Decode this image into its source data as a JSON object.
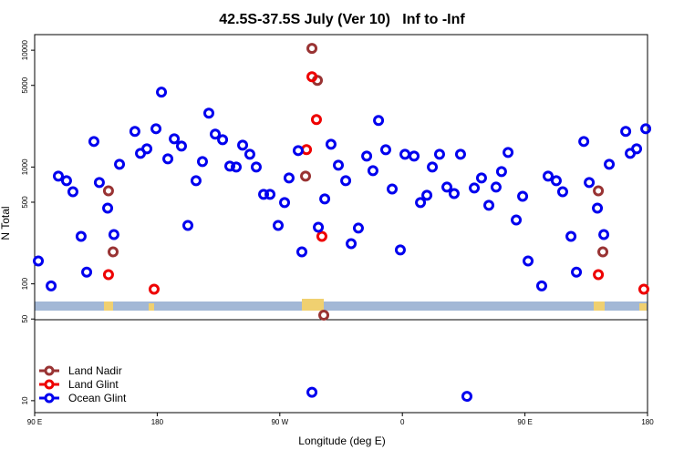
{
  "chart_data": {
    "type": "scatter",
    "title": "42.5S-37.5S July (Ver 10)   Inf to -Inf",
    "x_label": "Longitude (deg E)",
    "y_label": "N Total",
    "xlim": [
      90,
      540
    ],
    "xticks": [
      {
        "value": 90,
        "label": "90 E"
      },
      180,
      {
        "value": 270,
        "label": "90 W"
      },
      {
        "value": 360,
        "label": "0"
      },
      {
        "value": 450,
        "label": "90 E"
      },
      {
        "value": 540,
        "label": "180"
      }
    ],
    "ylim": [
      7.9,
      13600
    ],
    "y_log": true,
    "yticks": [
      10,
      50,
      100,
      500,
      1000,
      5000,
      10000
    ],
    "legend": "bottom-left",
    "series": [
      {
        "name": "Land Nadir",
        "color": "#993333",
        "x": [
          293.6,
          297.6,
          288.9,
          302.3,
          144.2,
          147.6,
          503.9,
          507.2
        ],
        "values": [
          10370,
          5520,
          836,
          54,
          626,
          188,
          626,
          188
        ]
      },
      {
        "name": "Land Glint",
        "color": "#ee0000",
        "x": [
          293.6,
          296.9,
          289.6,
          300.9,
          144.2,
          177.7,
          503.9,
          537.3
        ],
        "values": [
          5930,
          2550,
          1410,
          255,
          120,
          90,
          120,
          90
        ]
      },
      {
        "name": "Ocean Glint",
        "color": "#0000ee",
        "x": [
          92.7,
          102.1,
          107.4,
          113.4,
          118.1,
          124.1,
          128.2,
          133.5,
          137.5,
          143.6,
          148.2,
          152.3,
          163.6,
          167.7,
          172.4,
          179.1,
          183.1,
          187.8,
          192.5,
          197.8,
          202.5,
          208.5,
          213.2,
          217.9,
          222.6,
          228.0,
          233.3,
          238.0,
          242.7,
          248.0,
          252.7,
          258.1,
          262.8,
          268.8,
          273.5,
          276.8,
          283.5,
          286.2,
          293.6,
          298.3,
          303.0,
          307.6,
          313.0,
          318.4,
          322.4,
          327.7,
          333.8,
          338.4,
          342.5,
          347.8,
          352.5,
          358.5,
          361.9,
          368.6,
          373.3,
          378.0,
          382.0,
          387.3,
          392.7,
          398.0,
          402.7,
          407.4,
          412.8,
          418.1,
          423.5,
          428.8,
          432.8,
          437.6,
          443.6,
          448.3,
          452.3,
          462.3,
          467.0,
          473.0,
          477.7,
          483.8,
          487.8,
          493.2,
          497.2,
          503.2,
          507.9,
          511.9,
          524.0,
          527.3,
          532.0,
          538.7
        ],
        "values": [
          157,
          96,
          836,
          764,
          615,
          255,
          126,
          1655,
          737,
          445,
          264,
          1055,
          2018,
          1310,
          1432,
          2128,
          4374,
          1176,
          1746,
          1512,
          316,
          764,
          1114,
          2891,
          1911,
          1715,
          1018,
          1000,
          1540,
          1286,
          1000,
          583,
          583,
          316,
          496,
          806,
          1383,
          188,
          11.8,
          305,
          533,
          1567,
          1037,
          764,
          221,
          300,
          1241,
          931,
          2503,
          1407,
          649,
          195,
          1286,
          1241,
          496,
          573,
          1000,
          1286,
          673,
          593,
          1286,
          10.9,
          661,
          806,
          470,
          673,
          914,
          1334,
          352,
          562,
          157,
          96,
          836,
          764,
          615,
          255,
          126,
          1655,
          737,
          445,
          264,
          1055,
          2018,
          1310,
          1432,
          2128
        ]
      }
    ]
  }
}
